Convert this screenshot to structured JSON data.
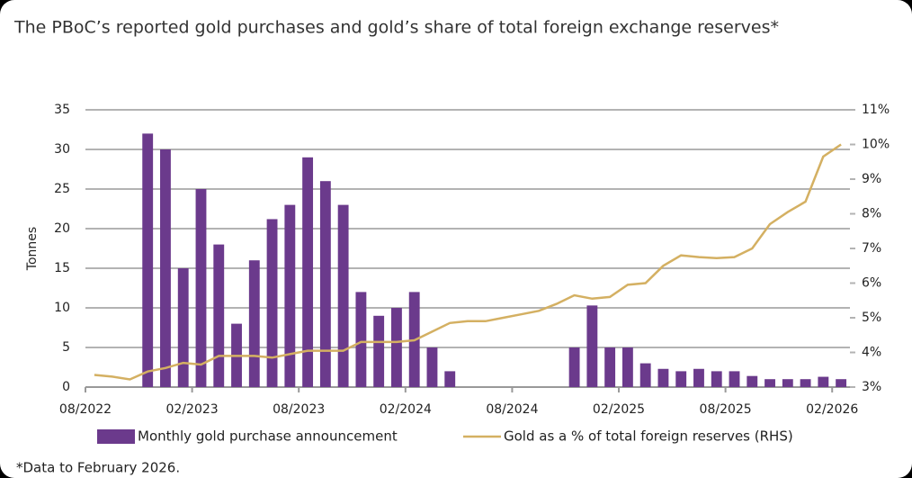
{
  "chart_data": {
    "type": "bar",
    "title": "The PBoC’s reported gold purchases and gold’s share of total foreign exchange reserves*",
    "ylabel": "Tonnes",
    "footnote": "*Data to February 2026.",
    "categories": [
      "08/2022",
      null,
      null,
      null,
      null,
      null,
      "02/2023",
      null,
      null,
      null,
      null,
      null,
      "08/2023",
      null,
      null,
      null,
      null,
      null,
      "02/2024",
      null,
      null,
      null,
      null,
      null,
      "08/2024",
      null,
      null,
      null,
      null,
      null,
      "02/2025",
      null,
      null,
      null,
      null,
      null,
      "08/2025",
      null,
      null,
      null,
      null,
      null,
      "02/2026"
    ],
    "series": [
      {
        "name": "Monthly gold purchase announcement",
        "type": "bar",
        "color": "#6b3a8c",
        "values": [
          null,
          null,
          null,
          32,
          30,
          15,
          25,
          18,
          8,
          16,
          21.2,
          23,
          29,
          26,
          23,
          12,
          9,
          10,
          12,
          5,
          2,
          null,
          null,
          null,
          null,
          null,
          null,
          5,
          10.3,
          5,
          5,
          3,
          2.3,
          2,
          2.3,
          2,
          2,
          1.4,
          1,
          1,
          1,
          1.3,
          1
        ]
      },
      {
        "name": "Gold as a % of total foreign reserves (RHS)",
        "type": "line",
        "axis": "y2",
        "color": "#d4b062",
        "values": [
          3.35,
          3.3,
          3.22,
          3.45,
          3.55,
          3.7,
          3.65,
          3.9,
          3.9,
          3.9,
          3.85,
          3.95,
          4.05,
          4.05,
          4.05,
          4.3,
          4.3,
          4.3,
          4.35,
          4.6,
          4.85,
          4.9,
          4.9,
          5.0,
          5.1,
          5.2,
          5.4,
          5.65,
          5.55,
          5.6,
          5.95,
          6.0,
          6.5,
          6.8,
          6.75,
          6.72,
          6.75,
          7.0,
          7.7,
          8.05,
          8.35,
          9.65,
          10.0
        ]
      }
    ],
    "ylim": [
      0,
      35
    ],
    "yticks": [
      0,
      5,
      10,
      15,
      20,
      25,
      30,
      35
    ],
    "y2lim": [
      3,
      11
    ],
    "y2ticks": [
      {
        "value": 3,
        "label": "3%"
      },
      {
        "value": 4,
        "label": "4%"
      },
      {
        "value": 5,
        "label": "5%"
      },
      {
        "value": 6,
        "label": "6%"
      },
      {
        "value": 7,
        "label": "7%"
      },
      {
        "value": 8,
        "label": "8%"
      },
      {
        "value": 9,
        "label": "9%"
      },
      {
        "value": 10,
        "label": "10%"
      },
      {
        "value": 11,
        "label": "11%"
      }
    ],
    "grid": true
  }
}
